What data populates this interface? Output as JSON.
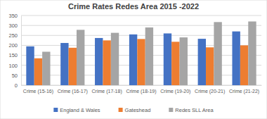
{
  "chart_data": {
    "type": "bar",
    "title": "Crime Rates Redes Area 2015 -2022",
    "categories": [
      "Crime (15-16)",
      "Crime (16-17)",
      "Crime (17-18)",
      "Crime (18-19)",
      "Crime (19-20)",
      "Crime (20-21)",
      "Crime (21-22)"
    ],
    "series": [
      {
        "name": "England & Wales",
        "color": "#4472c4",
        "values": [
          195,
          212,
          237,
          255,
          260,
          233,
          270
        ]
      },
      {
        "name": "Gateshead",
        "color": "#ed7d31",
        "values": [
          135,
          188,
          225,
          232,
          218,
          190,
          200
        ]
      },
      {
        "name": "Redes SLL Area",
        "color": "#a5a5a5",
        "values": [
          168,
          278,
          263,
          290,
          240,
          317,
          320
        ]
      }
    ],
    "ylim": [
      0,
      350
    ],
    "yticks": [
      0,
      50,
      100,
      150,
      200,
      250,
      300,
      350
    ],
    "grid": true,
    "legend": "bottom"
  }
}
